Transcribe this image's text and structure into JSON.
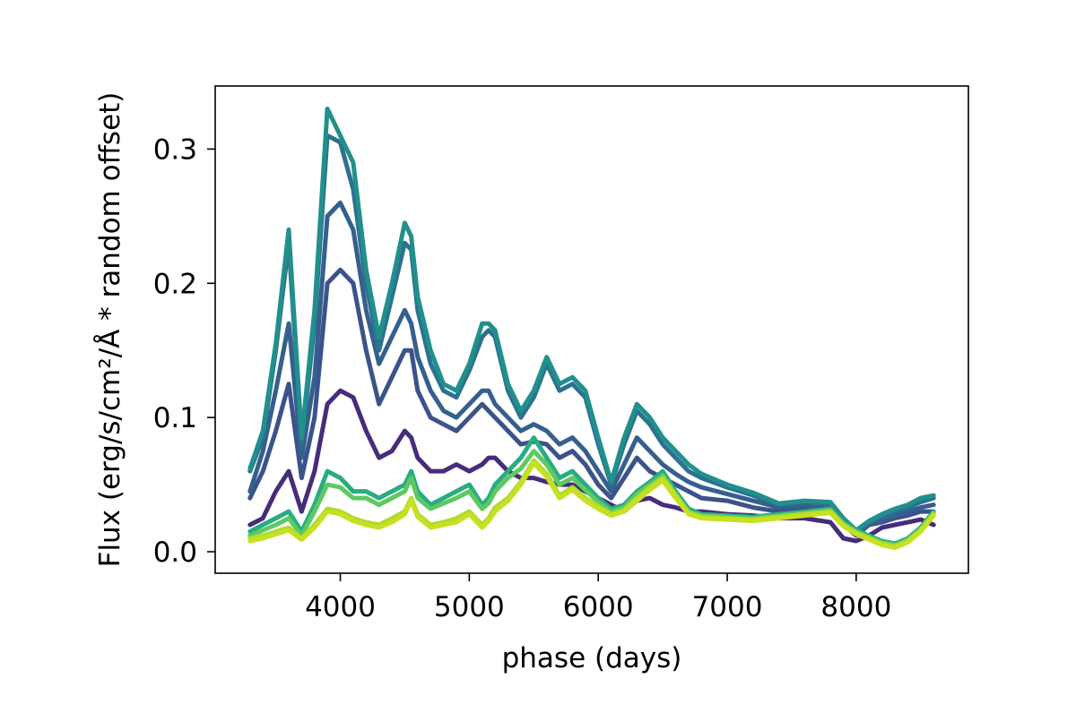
{
  "chart_data": {
    "type": "line",
    "title": "",
    "xlabel": "phase (days)",
    "ylabel": "Flux (erg/s/cm²/Å * random offset)",
    "xlim": [
      3030,
      8870
    ],
    "ylim": [
      -0.016,
      0.347
    ],
    "xticks": [
      4000,
      5000,
      6000,
      7000,
      8000
    ],
    "xtick_labels": [
      "4000",
      "5000",
      "6000",
      "7000",
      "8000"
    ],
    "yticks": [
      0.0,
      0.1,
      0.2,
      0.3
    ],
    "ytick_labels": [
      "0.0",
      "0.1",
      "0.2",
      "0.3"
    ],
    "grid": false,
    "legend": false,
    "x": [
      3300,
      3400,
      3500,
      3600,
      3700,
      3800,
      3900,
      4000,
      4100,
      4200,
      4300,
      4400,
      4500,
      4550,
      4600,
      4700,
      4800,
      4900,
      5000,
      5100,
      5150,
      5200,
      5300,
      5400,
      5500,
      5600,
      5700,
      5800,
      5900,
      6000,
      6100,
      6200,
      6300,
      6400,
      6500,
      6600,
      6700,
      6800,
      7000,
      7200,
      7400,
      7600,
      7800,
      7900,
      8000,
      8100,
      8200,
      8300,
      8400,
      8500,
      8600
    ],
    "series": [
      {
        "color": "#472c7a",
        "values": [
          0.02,
          0.025,
          0.045,
          0.06,
          0.03,
          0.06,
          0.11,
          0.12,
          0.115,
          0.09,
          0.07,
          0.075,
          0.09,
          0.085,
          0.07,
          0.06,
          0.06,
          0.065,
          0.06,
          0.065,
          0.07,
          0.07,
          0.06,
          0.055,
          0.055,
          0.052,
          0.05,
          0.05,
          0.045,
          0.04,
          0.035,
          0.03,
          0.038,
          0.04,
          0.035,
          0.033,
          0.03,
          0.03,
          0.028,
          0.027,
          0.025,
          0.025,
          0.022,
          0.01,
          0.008,
          0.012,
          0.018,
          0.02,
          0.022,
          0.024,
          0.02
        ]
      },
      {
        "color": "#3b528b",
        "values": [
          0.04,
          0.06,
          0.09,
          0.125,
          0.055,
          0.1,
          0.2,
          0.21,
          0.2,
          0.15,
          0.11,
          0.13,
          0.15,
          0.15,
          0.12,
          0.1,
          0.095,
          0.09,
          0.1,
          0.11,
          0.105,
          0.1,
          0.09,
          0.08,
          0.082,
          0.08,
          0.07,
          0.075,
          0.065,
          0.05,
          0.04,
          0.055,
          0.07,
          0.06,
          0.055,
          0.05,
          0.045,
          0.04,
          0.038,
          0.033,
          0.03,
          0.032,
          0.03,
          0.02,
          0.012,
          0.02,
          0.022,
          0.025,
          0.027,
          0.03,
          0.03
        ]
      },
      {
        "color": "#355f8d",
        "values": [
          0.045,
          0.075,
          0.12,
          0.17,
          0.07,
          0.13,
          0.25,
          0.26,
          0.24,
          0.18,
          0.14,
          0.16,
          0.18,
          0.17,
          0.145,
          0.12,
          0.105,
          0.1,
          0.11,
          0.12,
          0.12,
          0.11,
          0.1,
          0.09,
          0.095,
          0.09,
          0.08,
          0.085,
          0.075,
          0.06,
          0.045,
          0.065,
          0.085,
          0.075,
          0.065,
          0.058,
          0.052,
          0.048,
          0.043,
          0.038,
          0.033,
          0.035,
          0.033,
          0.022,
          0.014,
          0.02,
          0.024,
          0.027,
          0.03,
          0.033,
          0.035
        ]
      },
      {
        "color": "#2c728e",
        "values": [
          0.06,
          0.085,
          0.15,
          0.23,
          0.08,
          0.17,
          0.31,
          0.305,
          0.27,
          0.2,
          0.15,
          0.19,
          0.23,
          0.225,
          0.18,
          0.14,
          0.12,
          0.115,
          0.135,
          0.16,
          0.165,
          0.16,
          0.12,
          0.1,
          0.115,
          0.14,
          0.12,
          0.125,
          0.115,
          0.08,
          0.05,
          0.08,
          0.105,
          0.095,
          0.08,
          0.07,
          0.06,
          0.055,
          0.048,
          0.042,
          0.035,
          0.037,
          0.035,
          0.024,
          0.015,
          0.022,
          0.026,
          0.03,
          0.033,
          0.037,
          0.04
        ]
      },
      {
        "color": "#21908d",
        "values": [
          0.062,
          0.09,
          0.155,
          0.24,
          0.085,
          0.18,
          0.33,
          0.31,
          0.29,
          0.21,
          0.16,
          0.2,
          0.245,
          0.235,
          0.19,
          0.15,
          0.125,
          0.12,
          0.14,
          0.17,
          0.17,
          0.165,
          0.125,
          0.105,
          0.12,
          0.145,
          0.125,
          0.13,
          0.12,
          0.085,
          0.052,
          0.085,
          0.11,
          0.1,
          0.085,
          0.075,
          0.065,
          0.058,
          0.05,
          0.044,
          0.036,
          0.038,
          0.037,
          0.025,
          0.016,
          0.023,
          0.028,
          0.032,
          0.035,
          0.04,
          0.042
        ]
      },
      {
        "color": "#27ad81",
        "values": [
          0.015,
          0.02,
          0.025,
          0.03,
          0.015,
          0.035,
          0.06,
          0.055,
          0.045,
          0.045,
          0.04,
          0.045,
          0.05,
          0.06,
          0.045,
          0.035,
          0.04,
          0.045,
          0.05,
          0.035,
          0.04,
          0.05,
          0.06,
          0.07,
          0.085,
          0.07,
          0.055,
          0.06,
          0.05,
          0.04,
          0.032,
          0.035,
          0.045,
          0.052,
          0.06,
          0.045,
          0.032,
          0.028,
          0.027,
          0.026,
          0.028,
          0.03,
          0.032,
          0.022,
          0.016,
          0.012,
          0.008,
          0.006,
          0.01,
          0.018,
          0.03
        ]
      },
      {
        "color": "#5ec962",
        "values": [
          0.012,
          0.016,
          0.02,
          0.025,
          0.012,
          0.03,
          0.05,
          0.048,
          0.04,
          0.04,
          0.035,
          0.04,
          0.045,
          0.055,
          0.04,
          0.032,
          0.036,
          0.04,
          0.045,
          0.032,
          0.036,
          0.045,
          0.055,
          0.062,
          0.075,
          0.065,
          0.05,
          0.055,
          0.046,
          0.037,
          0.03,
          0.033,
          0.043,
          0.05,
          0.057,
          0.043,
          0.03,
          0.027,
          0.026,
          0.025,
          0.027,
          0.029,
          0.031,
          0.021,
          0.015,
          0.011,
          0.007,
          0.005,
          0.009,
          0.017,
          0.029
        ]
      },
      {
        "color": "#addc30",
        "values": [
          0.01,
          0.012,
          0.015,
          0.018,
          0.01,
          0.02,
          0.032,
          0.03,
          0.025,
          0.022,
          0.02,
          0.025,
          0.03,
          0.04,
          0.028,
          0.02,
          0.022,
          0.025,
          0.03,
          0.02,
          0.025,
          0.033,
          0.04,
          0.052,
          0.068,
          0.058,
          0.042,
          0.048,
          0.04,
          0.034,
          0.028,
          0.031,
          0.04,
          0.048,
          0.055,
          0.042,
          0.029,
          0.026,
          0.025,
          0.024,
          0.026,
          0.028,
          0.03,
          0.02,
          0.014,
          0.01,
          0.006,
          0.004,
          0.008,
          0.016,
          0.028
        ]
      },
      {
        "color": "#c8e020",
        "values": [
          0.008,
          0.01,
          0.013,
          0.016,
          0.009,
          0.018,
          0.03,
          0.028,
          0.023,
          0.02,
          0.018,
          0.022,
          0.028,
          0.038,
          0.026,
          0.018,
          0.02,
          0.022,
          0.028,
          0.018,
          0.023,
          0.03,
          0.038,
          0.05,
          0.066,
          0.056,
          0.04,
          0.046,
          0.038,
          0.032,
          0.027,
          0.03,
          0.038,
          0.046,
          0.053,
          0.04,
          0.028,
          0.025,
          0.024,
          0.023,
          0.025,
          0.027,
          0.029,
          0.019,
          0.013,
          0.009,
          0.005,
          0.003,
          0.007,
          0.015,
          0.027
        ]
      }
    ]
  }
}
